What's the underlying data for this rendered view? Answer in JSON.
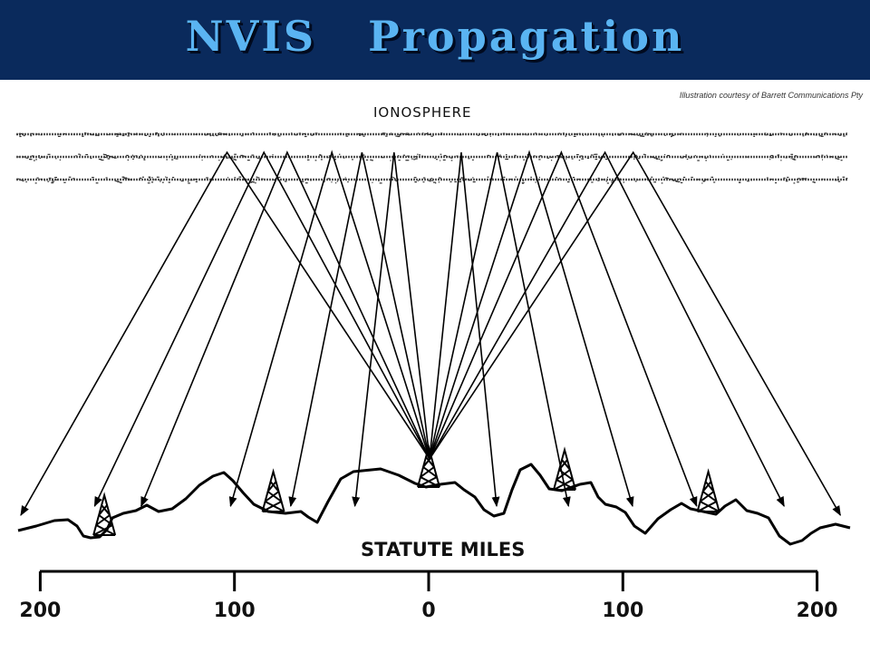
{
  "header": {
    "title": "NVIS   Propagation",
    "background_color": "#0a2a5c",
    "title_color": "#5ab4f2"
  },
  "credit": "Illustration courtesy of Barrett Communications Pty",
  "diagram": {
    "ionosphere_label": "IONOSPHERE",
    "axis_title": "STATUTE MILES",
    "scale_labels": [
      "200",
      "100",
      "0",
      "100",
      "200"
    ],
    "scale_values": [
      -200,
      -100,
      0,
      100,
      200
    ],
    "ray_landing_miles": [
      -210,
      -172,
      -148,
      -102,
      -71,
      -38,
      35,
      72,
      105,
      138,
      183,
      212
    ],
    "tower_miles": [
      -167,
      -80,
      0,
      70,
      144
    ],
    "icons": [
      "radio-tower-icon"
    ]
  }
}
